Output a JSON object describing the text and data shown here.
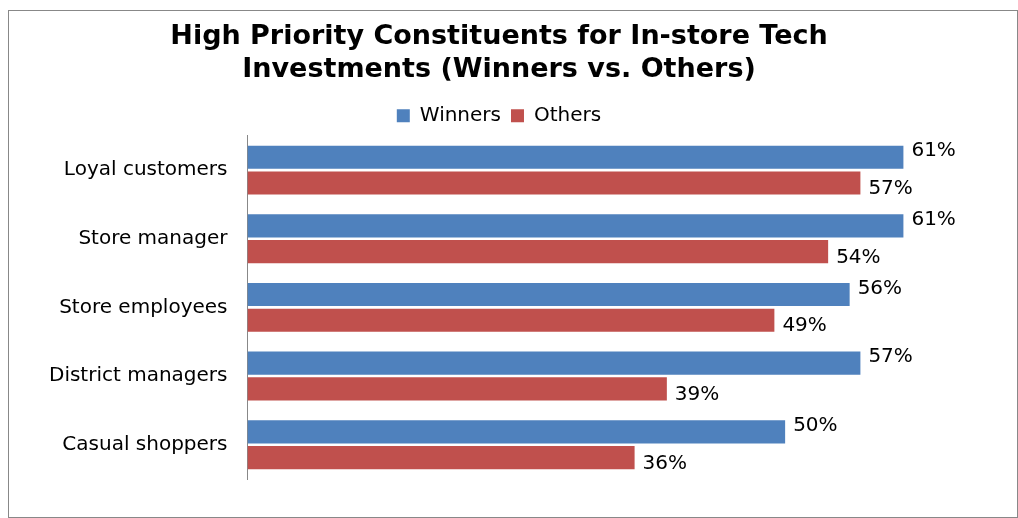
{
  "chart_data": {
    "type": "bar",
    "orientation": "horizontal",
    "title": "High Priority Constituents for In-store Tech Investments (Winners vs. Others)",
    "categories": [
      "Loyal customers",
      "Store manager",
      "Store employees",
      "District managers",
      "Casual shoppers"
    ],
    "series": [
      {
        "name": "Winners",
        "color": "#4f81bd",
        "values": [
          61,
          61,
          56,
          57,
          50
        ],
        "value_labels": [
          "61%",
          "61%",
          "56%",
          "57%",
          "50%"
        ]
      },
      {
        "name": "Others",
        "color": "#c0504d",
        "values": [
          57,
          54,
          49,
          39,
          36
        ],
        "value_labels": [
          "57%",
          "54%",
          "49%",
          "39%",
          "36%"
        ]
      }
    ],
    "legend": "top",
    "grid": false,
    "tick_labels": "y"
  }
}
